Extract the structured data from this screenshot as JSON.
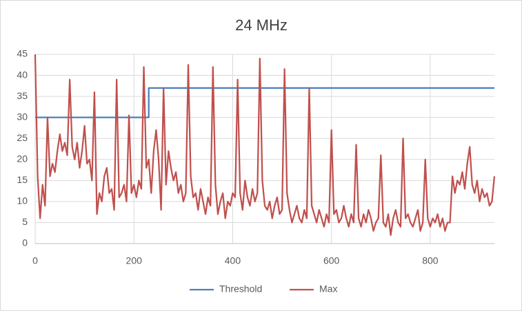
{
  "chart_data": {
    "type": "line",
    "title": "24 MHz",
    "xlim": [
      0,
      930
    ],
    "xticks": [
      0,
      200,
      400,
      600,
      800
    ],
    "ylim": [
      0,
      45
    ],
    "yticks": [
      0,
      5,
      10,
      15,
      20,
      25,
      30,
      35,
      40,
      45
    ],
    "grid": true,
    "legend": "bottom",
    "series": [
      {
        "name": "Threshold",
        "color": "#4a7ebb",
        "x": [
          0,
          230,
          230,
          930
        ],
        "values": [
          30,
          30,
          37,
          37
        ]
      },
      {
        "name": "Max",
        "color": "#c0504d",
        "x": [
          0,
          5,
          10,
          15,
          20,
          25,
          30,
          35,
          40,
          45,
          50,
          55,
          60,
          65,
          70,
          75,
          80,
          85,
          90,
          95,
          100,
          105,
          110,
          115,
          120,
          125,
          130,
          135,
          140,
          145,
          150,
          155,
          160,
          165,
          170,
          175,
          180,
          185,
          190,
          195,
          200,
          205,
          210,
          215,
          220,
          225,
          230,
          235,
          240,
          245,
          250,
          255,
          260,
          265,
          270,
          275,
          280,
          285,
          290,
          295,
          300,
          305,
          310,
          315,
          320,
          325,
          330,
          335,
          340,
          345,
          350,
          355,
          360,
          365,
          370,
          375,
          380,
          385,
          390,
          395,
          400,
          405,
          410,
          415,
          420,
          425,
          430,
          435,
          440,
          445,
          450,
          455,
          460,
          465,
          470,
          475,
          480,
          485,
          490,
          495,
          500,
          505,
          510,
          515,
          520,
          525,
          530,
          535,
          540,
          545,
          550,
          555,
          560,
          565,
          570,
          575,
          580,
          585,
          590,
          595,
          600,
          605,
          610,
          615,
          620,
          625,
          630,
          635,
          640,
          645,
          650,
          655,
          660,
          665,
          670,
          675,
          680,
          685,
          690,
          695,
          700,
          705,
          710,
          715,
          720,
          725,
          730,
          735,
          740,
          745,
          750,
          755,
          760,
          765,
          770,
          775,
          780,
          785,
          790,
          795,
          800,
          805,
          810,
          815,
          820,
          825,
          830,
          835,
          840,
          845,
          850,
          855,
          860,
          865,
          870,
          875,
          880,
          885,
          890,
          895,
          900,
          905,
          910,
          915,
          920,
          925,
          930
        ],
        "values": [
          45,
          16,
          6,
          14,
          9,
          30,
          16,
          19,
          17,
          22,
          26,
          22,
          24,
          21,
          39,
          23,
          20,
          24,
          18,
          22,
          28,
          19,
          20,
          15,
          36,
          7,
          12,
          10,
          16,
          18,
          12,
          13,
          8,
          39,
          11,
          12,
          14,
          10,
          30.5,
          12,
          14,
          11,
          15,
          13,
          42,
          18,
          20,
          12,
          22,
          27,
          20,
          8,
          37,
          14,
          22,
          18,
          15,
          17,
          12,
          14,
          10,
          12,
          42.5,
          16,
          11,
          12,
          8,
          13,
          10,
          7,
          11,
          9,
          42,
          14,
          7,
          10,
          12,
          6,
          10,
          9,
          12,
          11,
          39,
          12,
          8,
          15,
          11,
          9,
          13,
          10,
          12,
          44,
          15,
          9,
          8,
          10,
          6,
          9,
          11,
          7,
          8,
          41.5,
          12,
          8,
          5,
          7,
          9,
          6,
          5,
          8,
          6,
          37,
          9,
          7,
          5,
          8,
          6,
          4,
          7,
          5,
          27,
          7,
          8,
          5,
          6,
          9,
          6,
          4,
          7,
          5,
          23.5,
          6,
          4,
          7,
          5,
          8,
          6,
          3,
          5,
          6,
          21,
          5,
          4,
          7,
          2,
          6,
          8,
          5,
          4,
          25,
          6,
          7,
          5,
          4,
          6,
          8,
          3,
          5,
          20,
          6,
          4,
          6,
          5,
          7,
          4,
          6,
          3,
          5,
          5,
          16,
          12,
          15,
          14,
          17,
          13,
          19,
          23,
          14,
          12,
          15,
          10,
          13,
          11,
          12,
          9,
          10,
          16
        ]
      }
    ]
  }
}
